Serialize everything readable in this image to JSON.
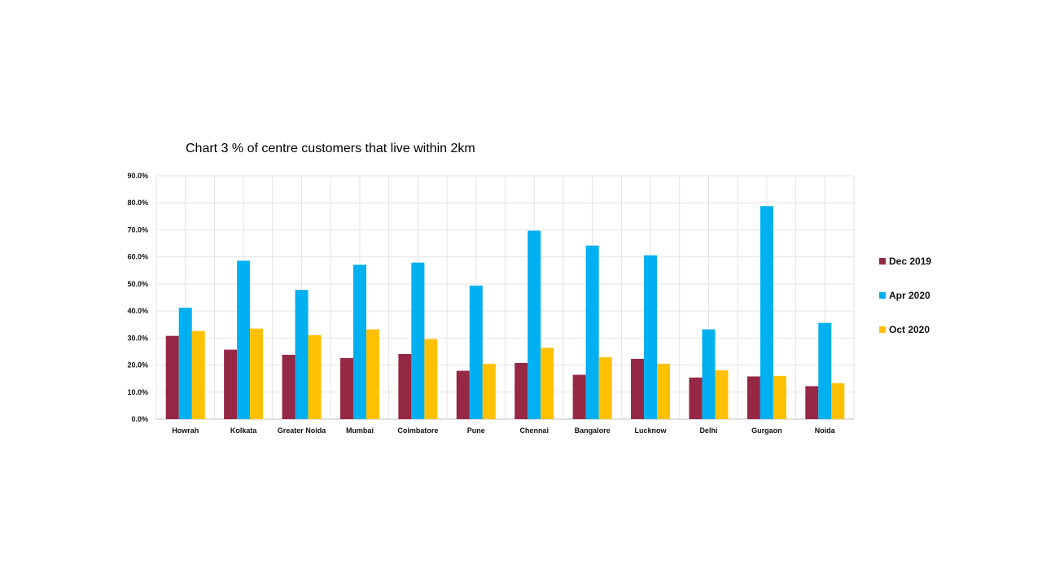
{
  "chart_data": {
    "type": "bar",
    "title": "Chart 3 % of centre customers that live within 2km",
    "xlabel": "",
    "ylabel": "",
    "ylim": [
      0,
      90
    ],
    "y_tick_format": "percent_1dp",
    "y_ticks": [
      "0.0%",
      "10.0%",
      "20.0%",
      "30.0%",
      "40.0%",
      "50.0%",
      "60.0%",
      "70.0%",
      "80.0%",
      "90.0%"
    ],
    "grid": true,
    "legend_position": "right",
    "categories": [
      "Howrah",
      "Kolkata",
      "Greater Noida",
      "Mumbai",
      "Coimbatore",
      "Pune",
      "Chennai",
      "Bangalore",
      "Lucknow",
      "Delhi",
      "Gurgaon",
      "Noida"
    ],
    "series": [
      {
        "name": "Dec 2019",
        "color": "#952845",
        "values": [
          30.8,
          25.7,
          23.8,
          22.6,
          24.1,
          17.9,
          20.8,
          16.4,
          22.3,
          15.4,
          15.8,
          12.2
        ]
      },
      {
        "name": "Apr 2020",
        "color": "#00b0f0",
        "values": [
          41.2,
          58.6,
          47.8,
          57.1,
          57.9,
          49.4,
          69.7,
          64.2,
          60.6,
          33.2,
          78.8,
          35.6
        ]
      },
      {
        "name": "Oct 2020",
        "color": "#ffc000",
        "values": [
          32.6,
          33.5,
          31.1,
          33.2,
          29.6,
          20.5,
          26.4,
          22.9,
          20.5,
          18.1,
          16.0,
          13.3
        ]
      }
    ]
  }
}
